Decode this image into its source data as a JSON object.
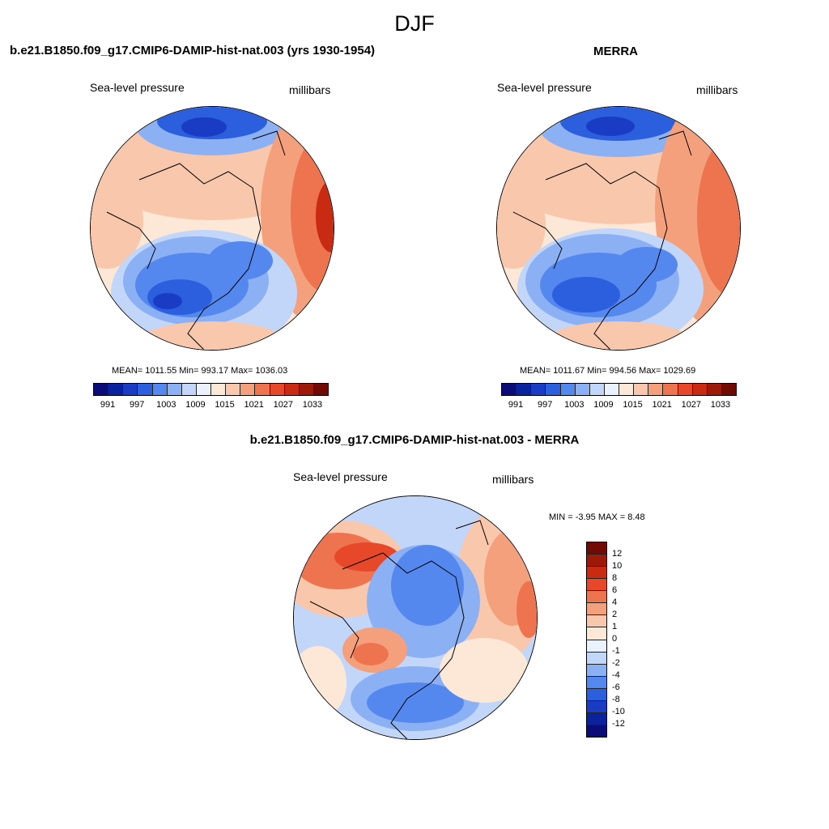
{
  "main_title": "DJF",
  "panels": [
    {
      "title": "b.e21.B1850.f09_g17.CMIP6-DAMIP-hist-nat.003 (yrs 1930-1954)",
      "variable": "Sea-level pressure",
      "units": "millibars",
      "stats": "MEAN= 1011.55  Min= 993.17  Max= 1036.03"
    },
    {
      "title": "MERRA",
      "variable": "Sea-level pressure",
      "units": "millibars",
      "stats": "MEAN= 1011.67  Min= 994.56  Max= 1029.69"
    },
    {
      "title": "b.e21.B1850.f09_g17.CMIP6-DAMIP-hist-nat.003 - MERRA",
      "variable": "Sea-level pressure",
      "units": "millibars",
      "stats": "MIN =  -3.95 MAX =   8.48"
    }
  ],
  "colorbar_abs": {
    "colors": [
      "#0c0c78",
      "#0b229e",
      "#1a3cc4",
      "#2b5fde",
      "#5588ee",
      "#8cb0f4",
      "#c2d6fa",
      "#eaf1ff",
      "#fde7d6",
      "#f9c8ac",
      "#f4a07c",
      "#ee7450",
      "#e8482a",
      "#c92a12",
      "#9e1a08",
      "#720a04"
    ],
    "tick_labels": [
      "991",
      "997",
      "1003",
      "1009",
      "1015",
      "1021",
      "1027",
      "1033"
    ]
  },
  "colorbar_diff": {
    "colors": [
      "#720a04",
      "#9e1a08",
      "#c92a12",
      "#e8482a",
      "#ee7450",
      "#f4a07c",
      "#f9c8ac",
      "#fde7d6",
      "#eaf1ff",
      "#c2d6fa",
      "#8cb0f4",
      "#5588ee",
      "#2b5fde",
      "#1a3cc4",
      "#0b229e",
      "#0c0c78"
    ],
    "tick_labels": [
      "12",
      "10",
      "8",
      "6",
      "4",
      "2",
      "1",
      "0",
      "-1",
      "-2",
      "-4",
      "-6",
      "-8",
      "-10",
      "-12"
    ]
  }
}
